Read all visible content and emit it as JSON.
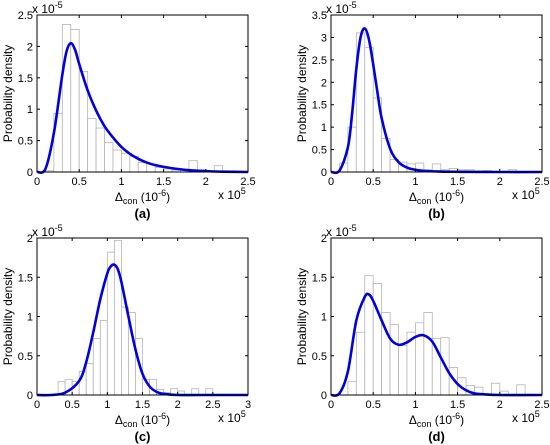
{
  "chart_data": [
    {
      "id": "a",
      "type": "bar",
      "panel_label": "(a)",
      "xlabel_main": "Δ",
      "xlabel_sub": "con",
      "xlabel_unit": " (10",
      "xlabel_unit_exp": "-6",
      "xlabel_unit_close": ")",
      "ylabel": "Probability density",
      "x_multiplier_base": "x 10",
      "x_multiplier_exp": "5",
      "y_multiplier_base": "x 10",
      "y_multiplier_exp": "-5",
      "xlim": [
        0,
        2.5
      ],
      "ylim": [
        0,
        2.5
      ],
      "x_ticks": [
        0,
        0.5,
        1,
        1.5,
        2,
        2.5
      ],
      "x_tick_labels": [
        "0",
        "0.5",
        "1",
        "1.5",
        "2",
        "2.5"
      ],
      "y_ticks": [
        0,
        0.5,
        1,
        1.5,
        2,
        2.5
      ],
      "y_tick_labels": [
        "0",
        "0.5",
        "1",
        "1.5",
        "2",
        "2.5"
      ],
      "bin_width": 0.1,
      "bin_edges": [
        0,
        0.1,
        0.2,
        0.3,
        0.4,
        0.5,
        0.6,
        0.7,
        0.8,
        0.9,
        1.0,
        1.1,
        1.2,
        1.3,
        1.4,
        1.5,
        1.6,
        1.7,
        1.8,
        1.9,
        2.0,
        2.1,
        2.2,
        2.3,
        2.4
      ],
      "bin_values": [
        0,
        0.02,
        0.93,
        2.35,
        2.27,
        1.6,
        0.85,
        0.7,
        0.47,
        0.35,
        0.3,
        0.25,
        0.15,
        0.13,
        0.07,
        0.05,
        0.03,
        0.0,
        0.18,
        0.03,
        0.0,
        0.1,
        0.0,
        0.0,
        0.0
      ],
      "curve": {
        "x": [
          0,
          0.1,
          0.2,
          0.3,
          0.35,
          0.4,
          0.45,
          0.5,
          0.6,
          0.7,
          0.8,
          0.9,
          1.0,
          1.1,
          1.2,
          1.3,
          1.4,
          1.6,
          1.8,
          2.0,
          2.2,
          2.5
        ],
        "y": [
          0,
          0.05,
          0.62,
          1.55,
          1.92,
          2.05,
          1.95,
          1.72,
          1.3,
          0.98,
          0.73,
          0.55,
          0.4,
          0.29,
          0.21,
          0.15,
          0.11,
          0.06,
          0.03,
          0.015,
          0.005,
          0.0
        ]
      }
    },
    {
      "id": "b",
      "type": "bar",
      "panel_label": "(b)",
      "xlabel_main": "Δ",
      "xlabel_sub": "con",
      "xlabel_unit": " (10",
      "xlabel_unit_exp": "-6",
      "xlabel_unit_close": ")",
      "ylabel": "Probability density",
      "x_multiplier_base": "x 10",
      "x_multiplier_exp": "5",
      "y_multiplier_base": "x 10",
      "y_multiplier_exp": "-5",
      "xlim": [
        0,
        2.5
      ],
      "ylim": [
        0,
        3.5
      ],
      "x_ticks": [
        0,
        0.5,
        1,
        1.5,
        2,
        2.5
      ],
      "x_tick_labels": [
        "0",
        "0.5",
        "1",
        "1.5",
        "2",
        "2.5"
      ],
      "y_ticks": [
        0,
        0.5,
        1,
        1.5,
        2,
        2.5,
        3,
        3.5
      ],
      "y_tick_labels": [
        "0",
        "0.5",
        "1",
        "1.5",
        "2",
        "2.5",
        "3",
        "3.5"
      ],
      "bin_width": 0.1,
      "bin_edges": [
        0,
        0.1,
        0.2,
        0.3,
        0.4,
        0.5,
        0.6,
        0.7,
        0.8,
        0.9,
        1.0,
        1.1,
        1.2,
        1.3,
        1.4,
        1.5,
        1.6,
        1.7,
        1.8,
        1.9,
        2.0,
        2.1,
        2.2,
        2.3,
        2.4
      ],
      "bin_values": [
        0,
        0.2,
        1.0,
        3.1,
        2.78,
        1.65,
        0.75,
        0.28,
        0.22,
        0.18,
        0.2,
        0.05,
        0.18,
        0.05,
        0.08,
        0.05,
        0.05,
        0.0,
        0.03,
        0.0,
        0.0,
        0.05,
        0.0,
        0.0,
        0.0
      ],
      "curve": {
        "x": [
          0,
          0.1,
          0.2,
          0.25,
          0.3,
          0.35,
          0.4,
          0.45,
          0.5,
          0.55,
          0.6,
          0.7,
          0.8,
          0.9,
          1.0,
          1.1,
          1.3,
          1.5,
          2.0,
          2.5
        ],
        "y": [
          0,
          0.03,
          0.55,
          1.3,
          2.3,
          3.0,
          3.2,
          2.95,
          2.4,
          1.78,
          1.2,
          0.52,
          0.22,
          0.1,
          0.05,
          0.025,
          0.01,
          0.005,
          0.0,
          0.0
        ]
      }
    },
    {
      "id": "c",
      "type": "bar",
      "panel_label": "(c)",
      "xlabel_main": "Δ",
      "xlabel_sub": "con",
      "xlabel_unit": " (10",
      "xlabel_unit_exp": "-6",
      "xlabel_unit_close": ")",
      "ylabel": "Probability density",
      "x_multiplier_base": "x 10",
      "x_multiplier_exp": "5",
      "y_multiplier_base": "x 10",
      "y_multiplier_exp": "-5",
      "xlim": [
        0,
        3
      ],
      "ylim": [
        0,
        2
      ],
      "x_ticks": [
        0,
        0.5,
        1,
        1.5,
        2,
        2.5,
        3
      ],
      "x_tick_labels": [
        "0",
        "0.5",
        "1",
        "1.5",
        "2",
        "2.5",
        "3"
      ],
      "y_ticks": [
        0,
        0.5,
        1,
        1.5,
        2
      ],
      "y_tick_labels": [
        "0",
        "0.5",
        "1",
        "1.5",
        "2"
      ],
      "bin_width": 0.1,
      "bin_edges": [
        0.3,
        0.4,
        0.5,
        0.6,
        0.7,
        0.8,
        0.9,
        1.0,
        1.1,
        1.2,
        1.3,
        1.4,
        1.5,
        1.6,
        1.7,
        1.8,
        1.9,
        2.0,
        2.1,
        2.2,
        2.3,
        2.4,
        2.5
      ],
      "bin_values": [
        0.17,
        0.2,
        0.17,
        0.3,
        0.4,
        0.72,
        0.95,
        1.82,
        1.97,
        1.12,
        1.05,
        0.72,
        0.2,
        0.2,
        0.07,
        0.03,
        0.08,
        0.05,
        0.0,
        0.08,
        0.0,
        0.08,
        0.0
      ],
      "curve": {
        "x": [
          0,
          0.2,
          0.4,
          0.6,
          0.7,
          0.8,
          0.9,
          1.0,
          1.05,
          1.1,
          1.15,
          1.2,
          1.3,
          1.4,
          1.5,
          1.6,
          1.7,
          1.8,
          2.0,
          2.3,
          3.0
        ],
        "y": [
          0,
          0.0,
          0.03,
          0.18,
          0.42,
          0.8,
          1.22,
          1.55,
          1.64,
          1.66,
          1.6,
          1.44,
          1.0,
          0.58,
          0.27,
          0.11,
          0.04,
          0.015,
          0.0,
          0.0,
          0.0
        ]
      }
    },
    {
      "id": "d",
      "type": "bar",
      "panel_label": "(d)",
      "xlabel_main": "Δ",
      "xlabel_sub": "con",
      "xlabel_unit": " (10",
      "xlabel_unit_exp": "-6",
      "xlabel_unit_close": ")",
      "ylabel": "Probability density",
      "x_multiplier_base": "x 10",
      "x_multiplier_exp": "5",
      "y_multiplier_base": "x 10",
      "y_multiplier_exp": "-5",
      "xlim": [
        0,
        2.5
      ],
      "ylim": [
        0,
        2
      ],
      "x_ticks": [
        0,
        0.5,
        1,
        1.5,
        2,
        2.5
      ],
      "x_tick_labels": [
        "0",
        "0.5",
        "1",
        "1.5",
        "2",
        "2.5"
      ],
      "y_ticks": [
        0,
        0.5,
        1,
        1.5,
        2
      ],
      "y_tick_labels": [
        "0",
        "0.5",
        "1",
        "1.5",
        "2"
      ],
      "bin_width": 0.1,
      "bin_edges": [
        0.2,
        0.3,
        0.4,
        0.5,
        0.6,
        0.7,
        0.8,
        0.9,
        1.0,
        1.1,
        1.2,
        1.3,
        1.4,
        1.5,
        1.6,
        1.7,
        1.8,
        1.9,
        2.0,
        2.1,
        2.2
      ],
      "bin_values": [
        0.17,
        0.8,
        1.52,
        1.42,
        1.05,
        0.9,
        0.63,
        0.8,
        0.92,
        1.05,
        0.72,
        0.73,
        0.35,
        0.22,
        0.12,
        0.1,
        0.0,
        0.15,
        0.05,
        0.0,
        0.13
      ],
      "curve": {
        "x": [
          0,
          0.1,
          0.2,
          0.3,
          0.4,
          0.45,
          0.5,
          0.6,
          0.7,
          0.8,
          0.9,
          1.0,
          1.1,
          1.2,
          1.3,
          1.4,
          1.5,
          1.6,
          1.7,
          1.8,
          2.0,
          2.5
        ],
        "y": [
          0,
          0.02,
          0.3,
          0.95,
          1.25,
          1.28,
          1.2,
          0.95,
          0.72,
          0.64,
          0.67,
          0.74,
          0.76,
          0.68,
          0.48,
          0.28,
          0.14,
          0.06,
          0.02,
          0.01,
          0.0,
          0.0
        ]
      }
    }
  ]
}
